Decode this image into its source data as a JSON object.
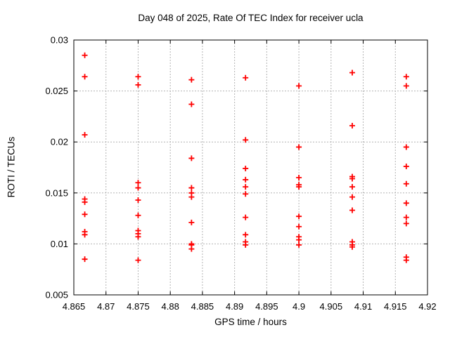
{
  "chart_data": {
    "type": "scatter",
    "title": "Day 048 of 2025, Rate Of TEC Index for receiver ucla",
    "xlabel": "GPS time / hours",
    "ylabel": "ROTI / TECUs",
    "xlim": [
      4.865,
      4.92
    ],
    "ylim": [
      0.005,
      0.03
    ],
    "xticks": [
      4.865,
      4.87,
      4.875,
      4.88,
      4.885,
      4.89,
      4.895,
      4.9,
      4.905,
      4.91,
      4.915,
      4.92
    ],
    "xtick_labels": [
      "4.865",
      "4.87",
      "4.875",
      "4.88",
      "4.885",
      "4.89",
      "4.895",
      "4.9",
      "4.905",
      "4.91",
      "4.915",
      "4.92"
    ],
    "yticks": [
      0.005,
      0.01,
      0.015,
      0.02,
      0.025,
      0.03
    ],
    "ytick_labels": [
      "0.005",
      "0.01",
      "0.015",
      "0.02",
      "0.025",
      "0.03"
    ],
    "grid": true,
    "legend": "none",
    "marker": "plus",
    "marker_color": "#ff0000",
    "grid_color": "#b3b3b3",
    "border_color": "#000000",
    "series": [
      {
        "name": "ROTI",
        "points": [
          [
            4.8667,
            0.0285
          ],
          [
            4.8667,
            0.0264
          ],
          [
            4.8667,
            0.0207
          ],
          [
            4.8667,
            0.0144
          ],
          [
            4.8667,
            0.0141
          ],
          [
            4.8667,
            0.0129
          ],
          [
            4.8667,
            0.0112
          ],
          [
            4.8667,
            0.0109
          ],
          [
            4.8667,
            0.0085
          ],
          [
            4.875,
            0.0264
          ],
          [
            4.875,
            0.0256
          ],
          [
            4.875,
            0.016
          ],
          [
            4.875,
            0.0155
          ],
          [
            4.875,
            0.0143
          ],
          [
            4.875,
            0.0128
          ],
          [
            4.875,
            0.0113
          ],
          [
            4.875,
            0.011
          ],
          [
            4.875,
            0.0107
          ],
          [
            4.875,
            0.0084
          ],
          [
            4.8833,
            0.0261
          ],
          [
            4.8833,
            0.0237
          ],
          [
            4.8833,
            0.0184
          ],
          [
            4.8833,
            0.0155
          ],
          [
            4.8833,
            0.015
          ],
          [
            4.8833,
            0.0146
          ],
          [
            4.8833,
            0.0121
          ],
          [
            4.8833,
            0.01
          ],
          [
            4.8833,
            0.0099
          ],
          [
            4.8833,
            0.0095
          ],
          [
            4.8917,
            0.0263
          ],
          [
            4.8917,
            0.0202
          ],
          [
            4.8917,
            0.0174
          ],
          [
            4.8917,
            0.0163
          ],
          [
            4.8917,
            0.0156
          ],
          [
            4.8917,
            0.0149
          ],
          [
            4.8917,
            0.0126
          ],
          [
            4.8917,
            0.0109
          ],
          [
            4.8917,
            0.0102
          ],
          [
            4.8917,
            0.0099
          ],
          [
            4.9,
            0.0255
          ],
          [
            4.9,
            0.0195
          ],
          [
            4.9,
            0.0165
          ],
          [
            4.9,
            0.0158
          ],
          [
            4.9,
            0.0156
          ],
          [
            4.9,
            0.0127
          ],
          [
            4.9,
            0.0117
          ],
          [
            4.9,
            0.0107
          ],
          [
            4.9,
            0.0104
          ],
          [
            4.9,
            0.0099
          ],
          [
            4.9083,
            0.0268
          ],
          [
            4.9083,
            0.0216
          ],
          [
            4.9083,
            0.0166
          ],
          [
            4.9083,
            0.0164
          ],
          [
            4.9083,
            0.0156
          ],
          [
            4.9083,
            0.0146
          ],
          [
            4.9083,
            0.0133
          ],
          [
            4.9083,
            0.0102
          ],
          [
            4.9083,
            0.0099
          ],
          [
            4.9083,
            0.0097
          ],
          [
            4.9167,
            0.0264
          ],
          [
            4.9167,
            0.0255
          ],
          [
            4.9167,
            0.0195
          ],
          [
            4.9167,
            0.0176
          ],
          [
            4.9167,
            0.0159
          ],
          [
            4.9167,
            0.014
          ],
          [
            4.9167,
            0.0126
          ],
          [
            4.9167,
            0.012
          ],
          [
            4.9167,
            0.0087
          ],
          [
            4.9167,
            0.0084
          ]
        ]
      }
    ]
  }
}
